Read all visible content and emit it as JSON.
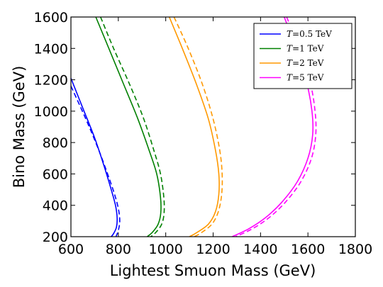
{
  "chart_data": {
    "type": "line",
    "xlabel": "Lightest Smuon Mass (GeV)",
    "ylabel": "Bino Mass (GeV)",
    "xlim": [
      600,
      1800
    ],
    "ylim": [
      200,
      1600
    ],
    "xticks": [
      "600",
      "800",
      "1000",
      "1200",
      "1400",
      "1600",
      "1800"
    ],
    "yticks": [
      "200",
      "400",
      "600",
      "800",
      "1000",
      "1200",
      "1400",
      "1600"
    ],
    "grid": false,
    "legend_position": "top-right",
    "series": [
      {
        "name": "T=0.5 TeV",
        "legend_var": "T",
        "legend_rest": "=0.5 TeV",
        "color": "#0000ff",
        "solid": [
          [
            600,
            1210
          ],
          [
            650,
            1020
          ],
          [
            700,
            830
          ],
          [
            740,
            650
          ],
          [
            770,
            500
          ],
          [
            788,
            400
          ],
          [
            795,
            320
          ],
          [
            792,
            260
          ],
          [
            780,
            220
          ],
          [
            770,
            200
          ]
        ],
        "dashed": [
          [
            600,
            1160
          ],
          [
            660,
            960
          ],
          [
            710,
            780
          ],
          [
            750,
            620
          ],
          [
            782,
            480
          ],
          [
            800,
            380
          ],
          [
            806,
            300
          ],
          [
            800,
            240
          ],
          [
            790,
            200
          ]
        ]
      },
      {
        "name": "T=1 TeV",
        "legend_var": "T",
        "legend_rest": "=1 TeV",
        "color": "#008000",
        "solid": [
          [
            705,
            1600
          ],
          [
            760,
            1400
          ],
          [
            820,
            1180
          ],
          [
            880,
            960
          ],
          [
            930,
            750
          ],
          [
            962,
            600
          ],
          [
            978,
            450
          ],
          [
            979,
            350
          ],
          [
            968,
            280
          ],
          [
            945,
            230
          ],
          [
            922,
            200
          ]
        ],
        "dashed": [
          [
            725,
            1600
          ],
          [
            780,
            1400
          ],
          [
            845,
            1180
          ],
          [
            905,
            960
          ],
          [
            950,
            750
          ],
          [
            978,
            600
          ],
          [
            992,
            450
          ],
          [
            993,
            350
          ],
          [
            983,
            280
          ],
          [
            960,
            230
          ],
          [
            937,
            200
          ]
        ]
      },
      {
        "name": "T=2 TeV",
        "legend_var": "T",
        "legend_rest": "=2 TeV",
        "color": "#ff9900",
        "solid": [
          [
            1015,
            1600
          ],
          [
            1070,
            1400
          ],
          [
            1130,
            1170
          ],
          [
            1180,
            950
          ],
          [
            1210,
            750
          ],
          [
            1224,
            600
          ],
          [
            1224,
            470
          ],
          [
            1210,
            360
          ],
          [
            1180,
            280
          ],
          [
            1130,
            225
          ],
          [
            1100,
            200
          ]
        ],
        "dashed": [
          [
            1035,
            1600
          ],
          [
            1095,
            1400
          ],
          [
            1155,
            1170
          ],
          [
            1200,
            950
          ],
          [
            1228,
            750
          ],
          [
            1238,
            600
          ],
          [
            1236,
            470
          ],
          [
            1222,
            360
          ],
          [
            1195,
            280
          ],
          [
            1150,
            225
          ],
          [
            1120,
            200
          ]
        ]
      },
      {
        "name": "T=5 TeV",
        "legend_var": "T",
        "legend_rest": "=5 TeV",
        "color": "#ff00ff",
        "solid": [
          [
            1500,
            1600
          ],
          [
            1550,
            1400
          ],
          [
            1595,
            1180
          ],
          [
            1617,
            1000
          ],
          [
            1620,
            850
          ],
          [
            1600,
            700
          ],
          [
            1555,
            550
          ],
          [
            1490,
            420
          ],
          [
            1420,
            320
          ],
          [
            1350,
            250
          ],
          [
            1280,
            200
          ]
        ],
        "dashed": [
          [
            1510,
            1600
          ],
          [
            1565,
            1400
          ],
          [
            1610,
            1180
          ],
          [
            1630,
            1000
          ],
          [
            1633,
            850
          ],
          [
            1615,
            700
          ],
          [
            1570,
            550
          ],
          [
            1505,
            420
          ],
          [
            1435,
            320
          ],
          [
            1365,
            250
          ],
          [
            1295,
            200
          ]
        ]
      }
    ]
  }
}
